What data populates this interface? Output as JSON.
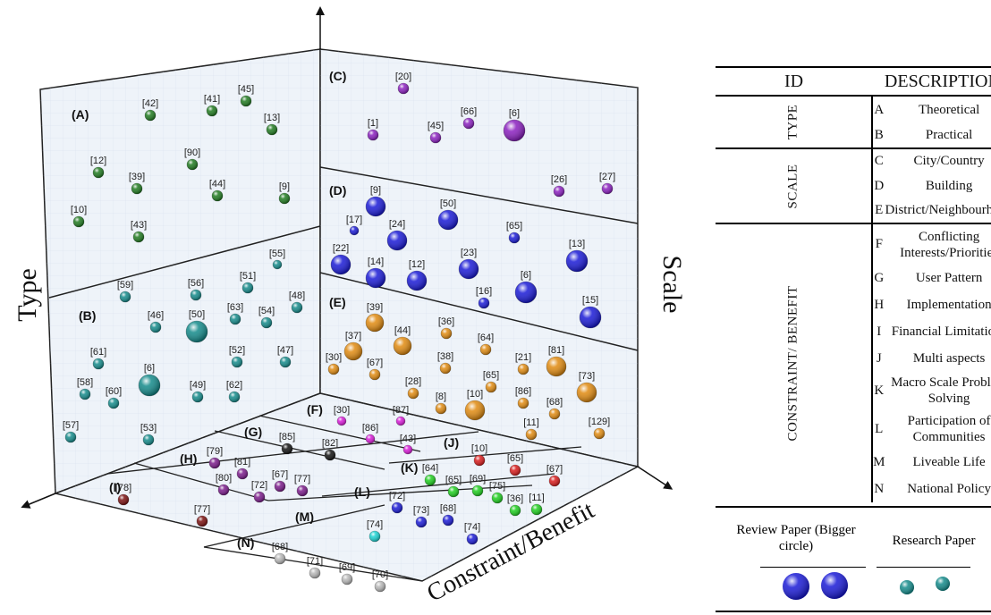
{
  "axes": {
    "left": "Type",
    "right": "Scale",
    "front": "Constraint/Benefit"
  },
  "panel_labels": [
    "(A)",
    "(B)",
    "(C)",
    "(D)",
    "(E)",
    "(F)",
    "(G)",
    "(H)",
    "(I)",
    "(J)",
    "(K)",
    "(L)",
    "(M)",
    "(N)"
  ],
  "colors": {
    "A": "#1f7a1f",
    "B": "#138a8a",
    "C": "#8a1fbf",
    "D": "#1a1ad6",
    "E": "#e08a10",
    "F": "#d81ad8",
    "G": "#111111",
    "H": "#7a1a8a",
    "I": "#7a0f0f",
    "J": "#d81a1a",
    "K": "#1ecf1e",
    "L": "#1a1ad6",
    "M": "#1ad2d2",
    "N": "#b8b8b8"
  },
  "references": {
    "A": [
      "[42]",
      "[41]",
      "[45]",
      "[13]",
      "[12]",
      "[39]",
      "[90]",
      "[44]",
      "[9]",
      "[10]",
      "[43]"
    ],
    "B": [
      "[55]",
      "[59]",
      "[56]",
      "[51]",
      "[48]",
      "[46]",
      "[50]",
      "[63]",
      "[54]",
      "[61]",
      "[52]",
      "[47]",
      "[6]",
      "[58]",
      "[60]",
      "[49]",
      "[62]",
      "[57]",
      "[53]"
    ],
    "C": [
      "[20]",
      "[1]",
      "[45]",
      "[66]",
      "[6]",
      "[26]",
      "[27]"
    ],
    "D": [
      "[9]",
      "[50]",
      "[17]",
      "[24]",
      "[65]",
      "[22]",
      "[14]",
      "[12]",
      "[23]",
      "[13]",
      "[16]",
      "[6]",
      "[15]"
    ],
    "E": [
      "[39]",
      "[44]",
      "[37]",
      "[36]",
      "[64]",
      "[30]",
      "[67]",
      "[38]",
      "[21]",
      "[81]",
      "[65]",
      "[73]",
      "[28]",
      "[10]",
      "[86]",
      "[8]",
      "[68]",
      "[11]",
      "[129]"
    ],
    "F": [
      "[30]",
      "[87]",
      "[86]",
      "[43]"
    ],
    "G": [
      "[85]",
      "[82]"
    ],
    "H": [
      "[79]",
      "[81]",
      "[80]",
      "[67]",
      "[77]",
      "[72]"
    ],
    "I": [
      "[78]",
      "[77]"
    ],
    "J": [
      "[10]",
      "[65]",
      "[67]"
    ],
    "K": [
      "[64]",
      "[65]",
      "[69]",
      "[75]",
      "[36]",
      "[11]"
    ],
    "L": [
      "[72]",
      "[73]",
      "[68]",
      "[74]"
    ],
    "M": [
      "[74]"
    ],
    "N": [
      "[68]",
      "[71]",
      "[69]",
      "[70]"
    ]
  },
  "legend": {
    "header_id": "ID",
    "header_desc": "DESCRIPTION",
    "groups": [
      {
        "name": "TYPE",
        "items": [
          {
            "id": "A",
            "desc": "Theoretical"
          },
          {
            "id": "B",
            "desc": "Practical"
          }
        ]
      },
      {
        "name": "SCALE",
        "items": [
          {
            "id": "C",
            "desc": "City/Country"
          },
          {
            "id": "D",
            "desc": "Building"
          },
          {
            "id": "E",
            "desc": "District/Neighbourhood"
          }
        ]
      },
      {
        "name": "CONSTRAINT/ BENEFIT",
        "items": [
          {
            "id": "F",
            "desc": "Conflicting Interests/Priorities"
          },
          {
            "id": "G",
            "desc": "User Pattern"
          },
          {
            "id": "H",
            "desc": "Implementation"
          },
          {
            "id": "I",
            "desc": "Financial Limitations"
          },
          {
            "id": "J",
            "desc": "Multi aspects"
          },
          {
            "id": "K",
            "desc": "Macro Scale Problem Solving"
          },
          {
            "id": "L",
            "desc": "Participation of Communities"
          },
          {
            "id": "M",
            "desc": "Liveable Life"
          },
          {
            "id": "N",
            "desc": "National Policy"
          }
        ]
      }
    ],
    "review_label": "Review Paper (Bigger circle)",
    "research_label": "Research Paper",
    "review_color": "#1a1ad6",
    "research_color": "#138a8a"
  }
}
